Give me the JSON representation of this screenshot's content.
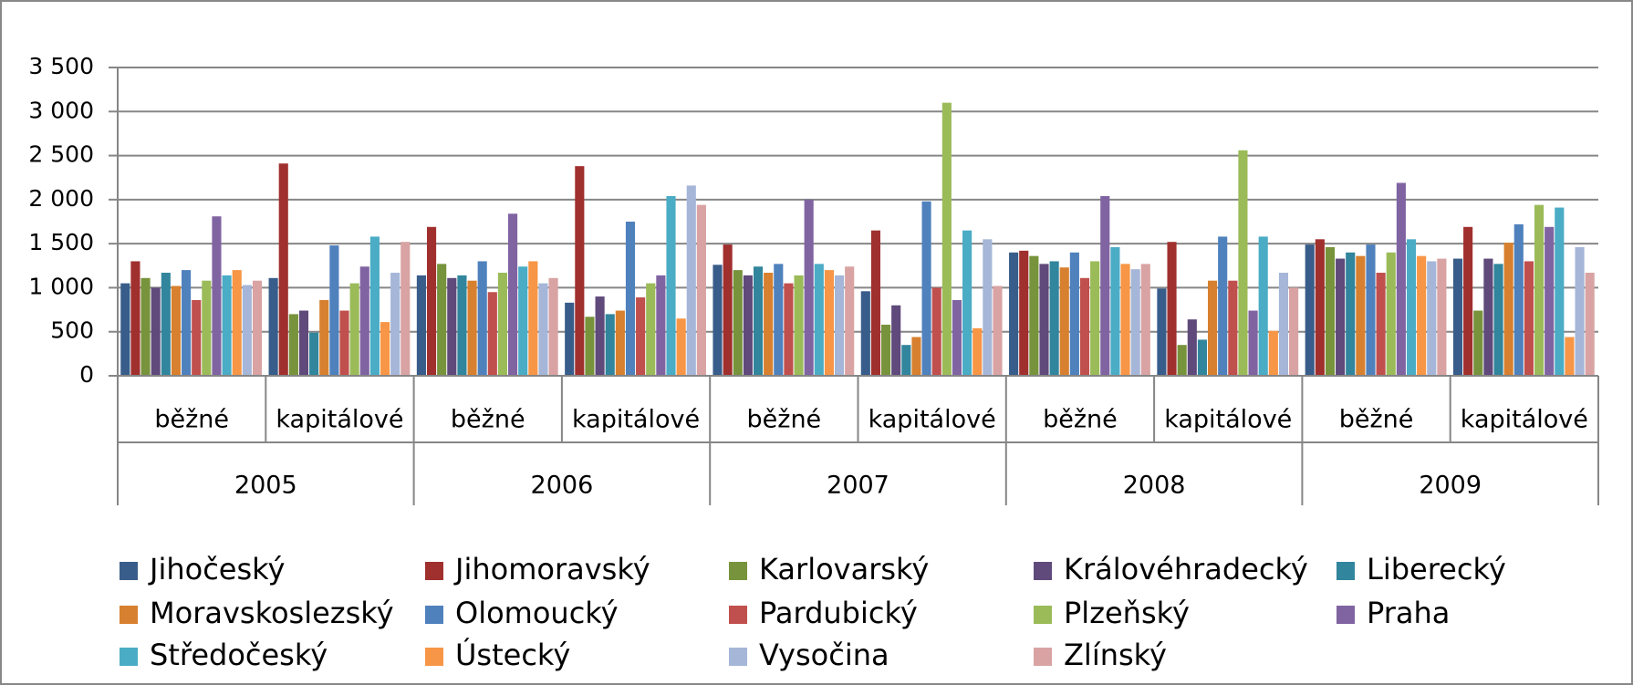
{
  "chart_data": {
    "type": "bar",
    "categories": [
      "běžné",
      "kapitálové",
      "běžné",
      "kapitálové",
      "běžné",
      "kapitálové",
      "běžné",
      "kapitálové",
      "běžné",
      "kapitálové"
    ],
    "category_groups": [
      "2005",
      "2006",
      "2007",
      "2008",
      "2009"
    ],
    "ylim": [
      0,
      3500
    ],
    "yticks": [
      0,
      500,
      {
        "value": 1000,
        "label": "1 000"
      },
      {
        "value": 1500,
        "label": "1 500"
      },
      {
        "value": 2000,
        "label": "2 000"
      },
      {
        "value": 2500,
        "label": "2 500"
      },
      {
        "value": 3000,
        "label": "3 000"
      },
      {
        "value": 3500,
        "label": "3 500"
      }
    ],
    "grid": true,
    "legend": "bottom",
    "series": [
      {
        "name": "Jihočeský",
        "color": "#385d8a",
        "values": [
          1050,
          1110,
          1140,
          830,
          1260,
          960,
          1400,
          990,
          1490,
          1330
        ]
      },
      {
        "name": "Jihomoravský",
        "color": "#a0302e",
        "values": [
          1300,
          2410,
          1690,
          2380,
          1490,
          1650,
          1420,
          1520,
          1550,
          1690
        ]
      },
      {
        "name": "Karlovarský",
        "color": "#77933c",
        "values": [
          1110,
          700,
          1270,
          670,
          1200,
          580,
          1360,
          350,
          1460,
          740
        ]
      },
      {
        "name": "Královéhradecký",
        "color": "#5f4a7b",
        "values": [
          1000,
          740,
          1110,
          900,
          1140,
          800,
          1270,
          640,
          1330,
          1330
        ]
      },
      {
        "name": "Liberecký",
        "color": "#31859c",
        "values": [
          1170,
          490,
          1140,
          700,
          1240,
          350,
          1300,
          410,
          1400,
          1270
        ]
      },
      {
        "name": "Moravskoslezský",
        "color": "#d7802f",
        "values": [
          1020,
          860,
          1080,
          740,
          1170,
          440,
          1230,
          1080,
          1360,
          1510
        ]
      },
      {
        "name": "Olomoucký",
        "color": "#4f81bd",
        "values": [
          1200,
          1480,
          1300,
          1750,
          1270,
          1980,
          1400,
          1580,
          1490,
          1720
        ]
      },
      {
        "name": "Pardubický",
        "color": "#c0504d",
        "values": [
          860,
          740,
          950,
          890,
          1050,
          1000,
          1110,
          1080,
          1170,
          1300
        ]
      },
      {
        "name": "Plzeňský",
        "color": "#9bbb59",
        "values": [
          1080,
          1050,
          1170,
          1050,
          1140,
          3100,
          1300,
          2560,
          1400,
          1940
        ]
      },
      {
        "name": "Praha",
        "color": "#8064a2",
        "values": [
          1810,
          1240,
          1840,
          1140,
          2000,
          860,
          2040,
          740,
          2190,
          1690
        ]
      },
      {
        "name": "Středočeský",
        "color": "#4bacc6",
        "values": [
          1140,
          1580,
          1240,
          2040,
          1270,
          1650,
          1460,
          1580,
          1550,
          1910
        ]
      },
      {
        "name": "Ústecký",
        "color": "#f79646",
        "values": [
          1200,
          610,
          1300,
          650,
          1200,
          540,
          1270,
          510,
          1360,
          440
        ]
      },
      {
        "name": "Vysočina",
        "color": "#a5b6d8",
        "values": [
          1030,
          1170,
          1050,
          2160,
          1140,
          1550,
          1210,
          1170,
          1300,
          1460
        ]
      },
      {
        "name": "Zlínský",
        "color": "#d9a3a3",
        "values": [
          1080,
          1520,
          1110,
          1940,
          1240,
          1020,
          1270,
          1000,
          1330,
          1170
        ]
      }
    ]
  }
}
